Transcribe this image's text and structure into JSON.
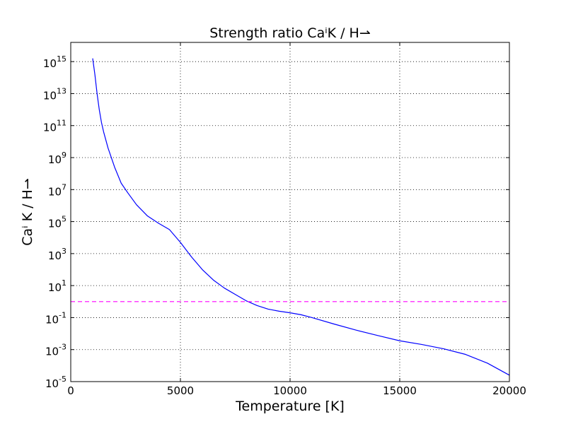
{
  "chart_data": {
    "type": "line",
    "title": "Strength ratio CaⁱK / H⇀",
    "xlabel": "Temperature [K]",
    "ylabel": "Caⁱ K / H⇀",
    "xlim": [
      0,
      20000
    ],
    "ylim_log10": [
      -5,
      16.2
    ],
    "y_scale": "log",
    "grid": true,
    "x_ticks": [
      {
        "value": 0,
        "label": "0"
      },
      {
        "value": 5000,
        "label": "5000"
      },
      {
        "value": 10000,
        "label": "10000"
      },
      {
        "value": 15000,
        "label": "15000"
      },
      {
        "value": 20000,
        "label": "20000"
      }
    ],
    "y_ticks": [
      {
        "exp": 15,
        "base": "10",
        "sup": "15"
      },
      {
        "exp": 13,
        "base": "10",
        "sup": "13"
      },
      {
        "exp": 11,
        "base": "10",
        "sup": "11"
      },
      {
        "exp": 9,
        "base": "10",
        "sup": "9"
      },
      {
        "exp": 7,
        "base": "10",
        "sup": "7"
      },
      {
        "exp": 5,
        "base": "10",
        "sup": "5"
      },
      {
        "exp": 3,
        "base": "10",
        "sup": "3"
      },
      {
        "exp": 1,
        "base": "10",
        "sup": "1"
      },
      {
        "exp": -1,
        "base": "10",
        "sup": "-1"
      },
      {
        "exp": -3,
        "base": "10",
        "sup": "-3"
      },
      {
        "exp": -5,
        "base": "10",
        "sup": "-5"
      }
    ],
    "series": [
      {
        "color": "#0000ff",
        "style": "solid",
        "points_log10": [
          [
            1000,
            15.2
          ],
          [
            1100,
            14.2
          ],
          [
            1200,
            13.0
          ],
          [
            1300,
            12.0
          ],
          [
            1400,
            11.2
          ],
          [
            1500,
            10.6
          ],
          [
            1700,
            9.6
          ],
          [
            2000,
            8.4
          ],
          [
            2300,
            7.4
          ],
          [
            2600,
            6.8
          ],
          [
            3000,
            6.05
          ],
          [
            3500,
            5.35
          ],
          [
            4000,
            4.9
          ],
          [
            4500,
            4.5
          ],
          [
            5000,
            3.7
          ],
          [
            5500,
            2.8
          ],
          [
            6000,
            2.0
          ],
          [
            6500,
            1.35
          ],
          [
            7000,
            0.85
          ],
          [
            7500,
            0.45
          ],
          [
            8000,
            0.05
          ],
          [
            8500,
            -0.25
          ],
          [
            9000,
            -0.47
          ],
          [
            9500,
            -0.6
          ],
          [
            10000,
            -0.7
          ],
          [
            10500,
            -0.82
          ],
          [
            11000,
            -1.0
          ],
          [
            12000,
            -1.4
          ],
          [
            13000,
            -1.78
          ],
          [
            14000,
            -2.12
          ],
          [
            15000,
            -2.45
          ],
          [
            16000,
            -2.68
          ],
          [
            17000,
            -2.95
          ],
          [
            18000,
            -3.3
          ],
          [
            19000,
            -3.85
          ],
          [
            20000,
            -4.6
          ]
        ]
      },
      {
        "color": "#ff00ff",
        "style": "dashed",
        "points_log10": [
          [
            0,
            0
          ],
          [
            20000,
            0
          ]
        ]
      }
    ]
  }
}
